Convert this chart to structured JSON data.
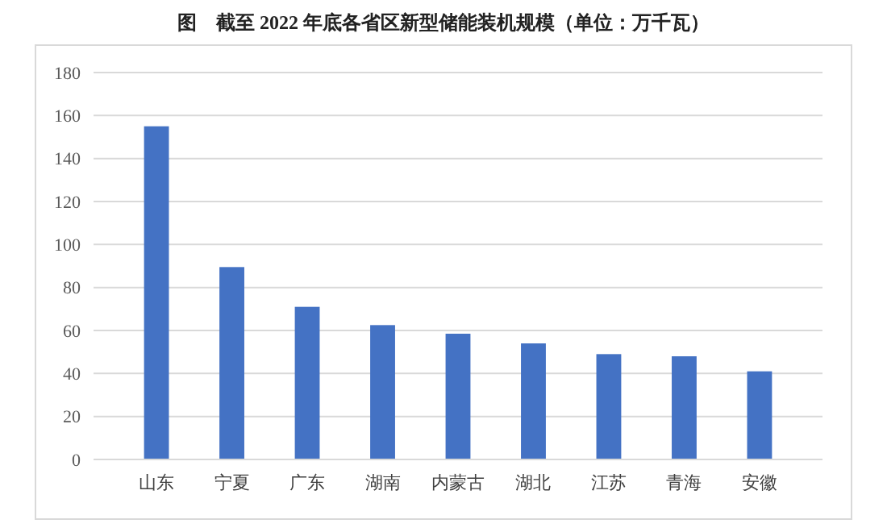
{
  "chart_data": {
    "type": "bar",
    "title": "图　截至 2022 年底各省区新型储能装机规模（单位：万千瓦）",
    "categories": [
      "山东",
      "宁夏",
      "广东",
      "湖南",
      "内蒙古",
      "湖北",
      "江苏",
      "青海",
      "安徽"
    ],
    "values": [
      155,
      89.5,
      71,
      62.5,
      58.5,
      54,
      49,
      48,
      41
    ],
    "color": "#4472c4",
    "ylim": [
      0,
      180
    ],
    "yticks": [
      0,
      20,
      40,
      60,
      80,
      100,
      120,
      140,
      160,
      180
    ],
    "grid": "y"
  }
}
